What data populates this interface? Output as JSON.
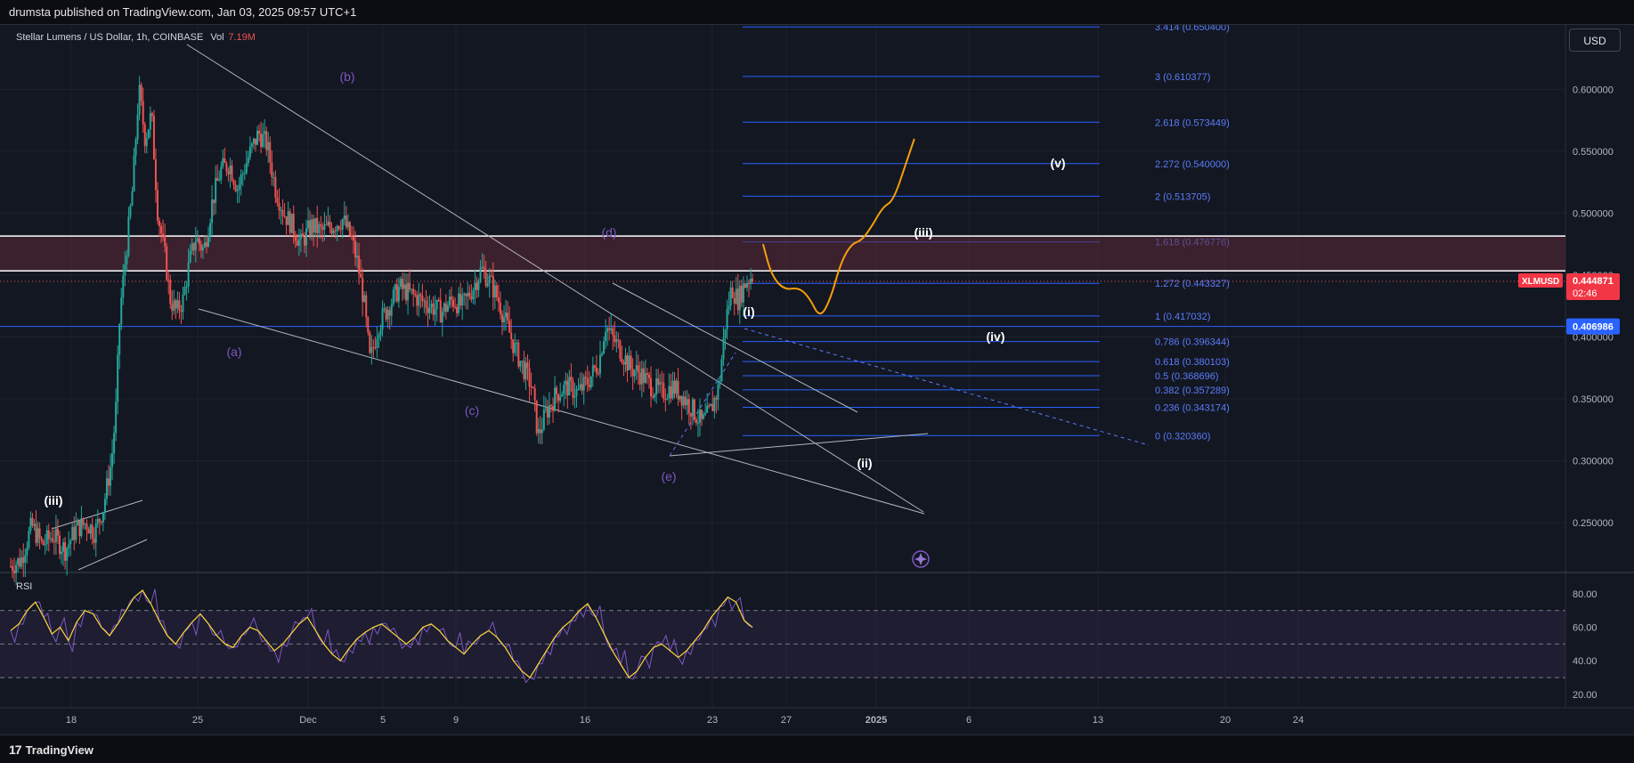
{
  "header": {
    "publish_line": "drumsta published on TradingView.com, Jan 03, 2025 09:57 UTC+1"
  },
  "footer": {
    "brand": "TradingView",
    "brand_mark": "17"
  },
  "currency_button": "USD",
  "chart_data": {
    "type": "candlestick",
    "title": "Stellar Lumens / US Dollar, 1h, COINBASE",
    "volume_label": "Vol",
    "volume_value": "7.19M",
    "symbol": "XLMUSD",
    "last_price": "0.444871",
    "countdown": "02:46",
    "marker_price": "0.406986",
    "x_tick_labels": [
      "18",
      "25",
      "Dec",
      "5",
      "9",
      "16",
      "23",
      "27",
      "2025",
      "6",
      "13",
      "20",
      "24"
    ],
    "y_range": [
      0.212,
      0.652
    ],
    "y_tick_labels": [
      "0.600000",
      "0.550000",
      "0.500000",
      "0.450000",
      "0.400000",
      "0.350000",
      "0.300000",
      "0.250000"
    ],
    "price_path": [
      [
        0.0,
        0.215
      ],
      [
        0.5,
        0.22
      ],
      [
        1.0,
        0.248
      ],
      [
        1.5,
        0.232
      ],
      [
        2.0,
        0.24
      ],
      [
        2.6,
        0.228
      ],
      [
        3.1,
        0.245
      ],
      [
        3.6,
        0.25
      ],
      [
        4.0,
        0.242
      ],
      [
        4.4,
        0.262
      ],
      [
        4.8,
        0.3
      ],
      [
        5.0,
        0.34
      ],
      [
        5.2,
        0.42
      ],
      [
        5.5,
        0.47
      ],
      [
        5.8,
        0.52
      ],
      [
        6.1,
        0.6
      ],
      [
        6.4,
        0.56
      ],
      [
        6.7,
        0.58
      ],
      [
        7.0,
        0.5
      ],
      [
        7.3,
        0.47
      ],
      [
        7.6,
        0.43
      ],
      [
        7.9,
        0.42
      ],
      [
        8.2,
        0.43
      ],
      [
        8.5,
        0.46
      ],
      [
        8.8,
        0.48
      ],
      [
        9.2,
        0.47
      ],
      [
        9.6,
        0.51
      ],
      [
        10.0,
        0.535
      ],
      [
        10.4,
        0.54
      ],
      [
        10.8,
        0.52
      ],
      [
        11.3,
        0.545
      ],
      [
        11.8,
        0.565
      ],
      [
        12.2,
        0.555
      ],
      [
        12.6,
        0.52
      ],
      [
        13.0,
        0.5
      ],
      [
        13.4,
        0.49
      ],
      [
        13.8,
        0.475
      ],
      [
        14.3,
        0.49
      ],
      [
        14.8,
        0.485
      ],
      [
        15.3,
        0.49
      ],
      [
        15.8,
        0.495
      ],
      [
        16.2,
        0.48
      ],
      [
        16.5,
        0.46
      ],
      [
        16.8,
        0.43
      ],
      [
        17.1,
        0.38
      ],
      [
        17.5,
        0.41
      ],
      [
        18.0,
        0.425
      ],
      [
        18.5,
        0.44
      ],
      [
        19.0,
        0.435
      ],
      [
        19.5,
        0.43
      ],
      [
        20.0,
        0.425
      ],
      [
        20.5,
        0.42
      ],
      [
        21.0,
        0.43
      ],
      [
        21.5,
        0.425
      ],
      [
        22.0,
        0.44
      ],
      [
        22.4,
        0.455
      ],
      [
        22.8,
        0.445
      ],
      [
        23.2,
        0.43
      ],
      [
        23.6,
        0.41
      ],
      [
        24.0,
        0.39
      ],
      [
        24.4,
        0.375
      ],
      [
        24.8,
        0.36
      ],
      [
        25.1,
        0.32
      ],
      [
        25.5,
        0.34
      ],
      [
        26.0,
        0.355
      ],
      [
        26.5,
        0.36
      ],
      [
        27.0,
        0.355
      ],
      [
        27.5,
        0.365
      ],
      [
        28.0,
        0.38
      ],
      [
        28.3,
        0.41
      ],
      [
        28.6,
        0.4
      ],
      [
        29.0,
        0.39
      ],
      [
        29.5,
        0.375
      ],
      [
        30.0,
        0.37
      ],
      [
        30.5,
        0.36
      ],
      [
        31.0,
        0.355
      ],
      [
        31.5,
        0.36
      ],
      [
        32.0,
        0.352
      ],
      [
        32.5,
        0.34
      ],
      [
        32.9,
        0.33
      ],
      [
        33.3,
        0.34
      ],
      [
        33.7,
        0.36
      ],
      [
        34.0,
        0.41
      ],
      [
        34.3,
        0.44
      ],
      [
        34.6,
        0.43
      ],
      [
        35.0,
        0.445
      ],
      [
        35.3,
        0.45
      ]
    ],
    "projection_path": [
      [
        35.8,
        0.475
      ],
      [
        36.2,
        0.45
      ],
      [
        36.8,
        0.438
      ],
      [
        37.5,
        0.44
      ],
      [
        38.0,
        0.432
      ],
      [
        38.5,
        0.415
      ],
      [
        39.0,
        0.43
      ],
      [
        39.5,
        0.46
      ],
      [
        40.0,
        0.475
      ],
      [
        40.5,
        0.478
      ],
      [
        41.0,
        0.49
      ],
      [
        41.5,
        0.505
      ],
      [
        42.0,
        0.51
      ],
      [
        42.6,
        0.54
      ],
      [
        43.0,
        0.56
      ]
    ],
    "fib_levels": [
      {
        "label": "3.414 (0.650400)",
        "value": 0.6504
      },
      {
        "label": "3 (0.610377)",
        "value": 0.610377
      },
      {
        "label": "2.618 (0.573449)",
        "value": 0.573449
      },
      {
        "label": "2.272 (0.540000)",
        "value": 0.54
      },
      {
        "label": "2 (0.513705)",
        "value": 0.513705
      },
      {
        "label": "1.618 (0.476776)",
        "value": 0.476776
      },
      {
        "label": "1.272 (0.443327)",
        "value": 0.443327
      },
      {
        "label": "1 (0.417032)",
        "value": 0.417032
      },
      {
        "label": "0.786 (0.396344)",
        "value": 0.396344
      },
      {
        "label": "0.618 (0.380103)",
        "value": 0.380103
      },
      {
        "label": "0.5 (0.368696)",
        "value": 0.368696
      },
      {
        "label": "0.382 (0.357289)",
        "value": 0.357289
      },
      {
        "label": "0.236 (0.343174)",
        "value": 0.343174
      },
      {
        "label": "0 (0.320360)",
        "value": 0.32036
      }
    ],
    "resistance_zone": [
      0.4534,
      0.4815
    ],
    "wave_labels_purple": [
      "(a)",
      "(b)",
      "(c)",
      "(d)",
      "(e)"
    ],
    "wave_labels_white": [
      "(iii)",
      "(i)",
      "(ii)",
      "(iii)",
      "(iv)",
      "(v)"
    ],
    "rsi": {
      "label": "RSI",
      "y_range": [
        12,
        90
      ],
      "y_tick_labels": [
        "80.00",
        "60.00",
        "40.00",
        "20.00"
      ],
      "upper_band": 70,
      "middle_band": 50,
      "lower_band": 30,
      "values": [
        58,
        62,
        70,
        75,
        66,
        56,
        60,
        52,
        63,
        70,
        68,
        60,
        55,
        62,
        70,
        78,
        82,
        74,
        64,
        55,
        50,
        57,
        63,
        68,
        62,
        55,
        50,
        48,
        55,
        60,
        58,
        52,
        46,
        50,
        56,
        62,
        66,
        58,
        50,
        44,
        40,
        47,
        53,
        57,
        60,
        62,
        58,
        54,
        50,
        54,
        60,
        62,
        58,
        52,
        48,
        44,
        50,
        55,
        58,
        54,
        48,
        40,
        34,
        30,
        38,
        46,
        54,
        60,
        64,
        70,
        74,
        66,
        56,
        46,
        38,
        30,
        34,
        42,
        48,
        50,
        46,
        42,
        46,
        52,
        58,
        66,
        72,
        78,
        75,
        64,
        60
      ]
    }
  }
}
